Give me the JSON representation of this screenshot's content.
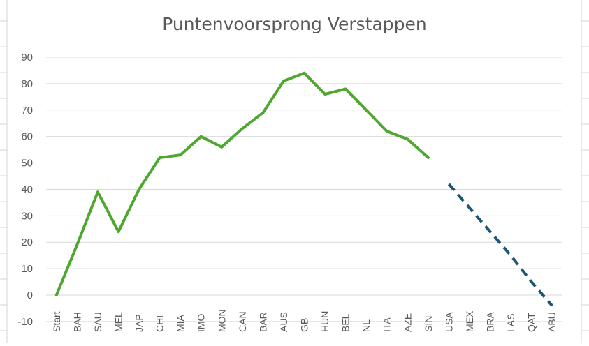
{
  "chart_data": {
    "type": "line",
    "title": "Puntenvoorsprong Verstappen",
    "xlabel": "",
    "ylabel": "",
    "ylim": [
      -10,
      90
    ],
    "yticks": [
      -10,
      0,
      10,
      20,
      30,
      40,
      50,
      60,
      70,
      80,
      90
    ],
    "grid": true,
    "legend": "none",
    "categories": [
      "Start",
      "BAH",
      "SAU",
      "MEL",
      "JAP",
      "CHI",
      "MIA",
      "IMO",
      "MON",
      "CAN",
      "BAR",
      "AUS",
      "GB",
      "HUN",
      "BEL",
      "NL",
      "ITA",
      "AZE",
      "SIN",
      "USA",
      "MEX",
      "BRA",
      "LAS",
      "QAT",
      "ABU"
    ],
    "series": [
      {
        "style": "solid",
        "color": "#4ea72e",
        "values": [
          0,
          19,
          39,
          24,
          40,
          52,
          53,
          60,
          56,
          63,
          69,
          81,
          84,
          76,
          78,
          70,
          62,
          59,
          52,
          null,
          null,
          null,
          null,
          null,
          null
        ]
      },
      {
        "style": "dashed",
        "color": "#1b5674",
        "values": [
          null,
          null,
          null,
          null,
          null,
          null,
          null,
          null,
          null,
          null,
          null,
          null,
          null,
          null,
          null,
          null,
          null,
          null,
          null,
          42,
          33,
          24,
          15,
          5,
          -4
        ]
      }
    ]
  },
  "colors": {
    "grid": "#d9d9d9",
    "text": "#595959",
    "sheet_lines": "#d4d4d4"
  }
}
